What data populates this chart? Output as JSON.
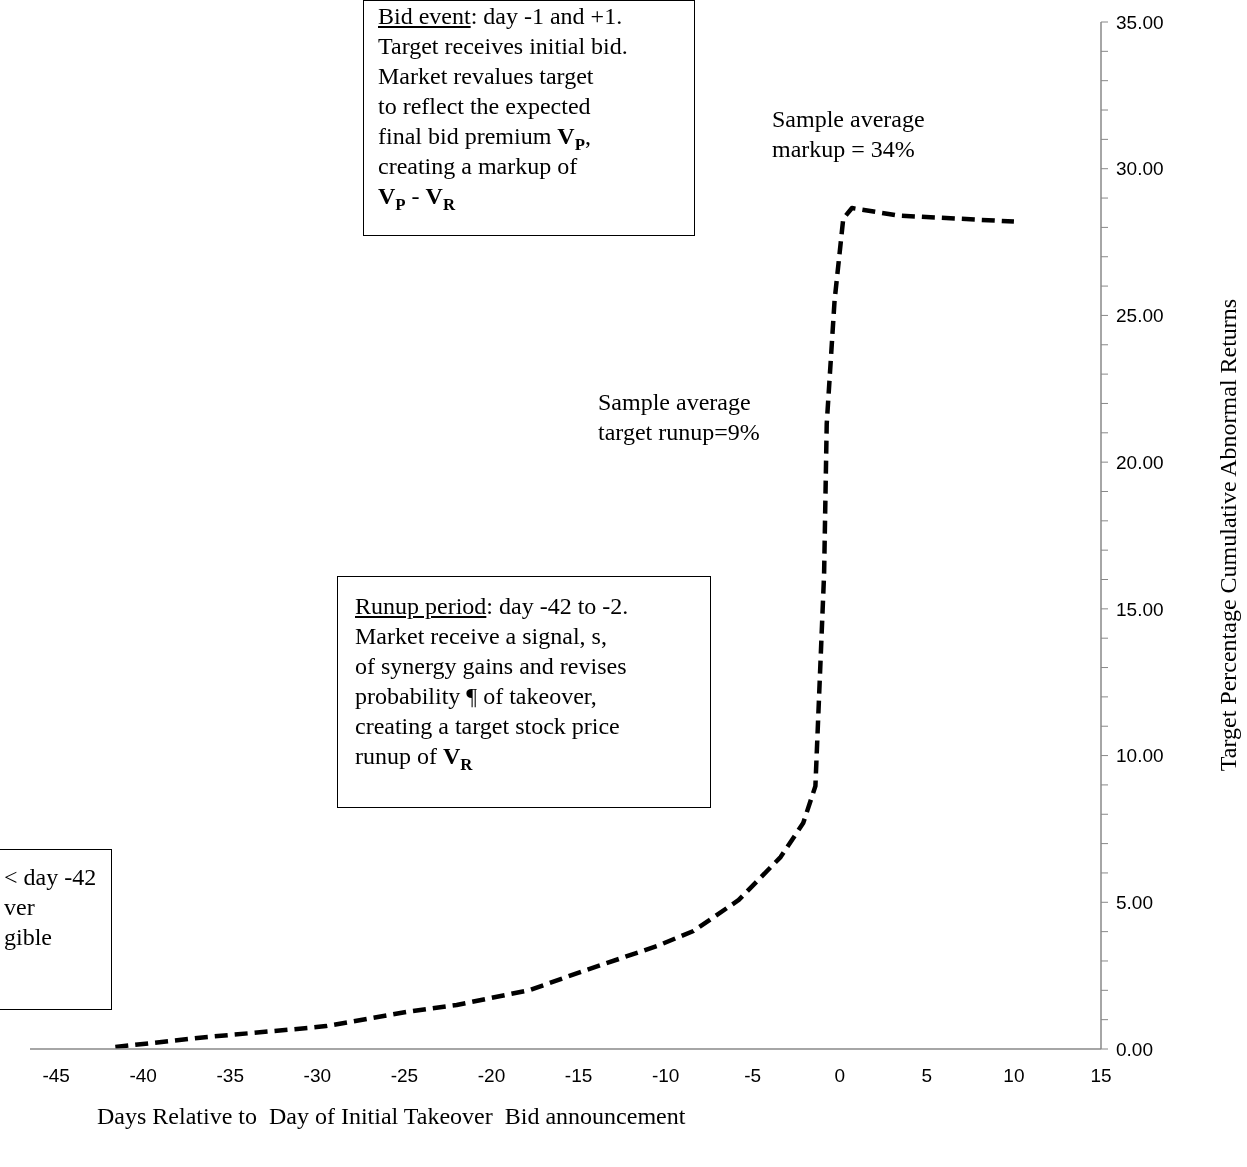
{
  "chart_data": {
    "type": "line",
    "xlabel": "Days Relative to  Day of Initial Takeover  Bid announcement",
    "ylabel": "Target Percentage Cumulative Abnormal Returns",
    "x": [
      -41.6,
      -36.3,
      -30.5,
      -29.5,
      -24.9,
      -22.0,
      -17.8,
      -14.9,
      -10.5,
      -8.4,
      -5.8,
      -3.4,
      -2.1,
      -1.4,
      -0.9,
      -0.75,
      -0.3,
      0.2,
      0.7,
      3.4,
      10
    ],
    "series": [
      {
        "color": "#000000",
        "values": [
          0.07,
          0.41,
          0.72,
          0.78,
          1.26,
          1.5,
          2.01,
          2.62,
          3.51,
          4.02,
          5.08,
          6.54,
          7.7,
          8.96,
          16.2,
          21.3,
          25.5,
          28.3,
          28.66,
          28.4,
          28.2
        ]
      }
    ],
    "xlim": [
      -46.5,
      15
    ],
    "xticks": [
      -45,
      -40,
      -35,
      -30,
      -25,
      -20,
      -15,
      -10,
      -5,
      0,
      5,
      10,
      15
    ],
    "ylim": [
      0,
      35
    ],
    "yticks": [
      {
        "value": 0,
        "label": "0.00"
      },
      {
        "value": 1,
        "label": null
      },
      {
        "value": 2,
        "label": null
      },
      {
        "value": 3,
        "label": null
      },
      {
        "value": 4,
        "label": null
      },
      {
        "value": 5,
        "label": "5.00"
      },
      {
        "value": 6,
        "label": null
      },
      {
        "value": 7,
        "label": null
      },
      {
        "value": 8,
        "label": null
      },
      {
        "value": 9,
        "label": null
      },
      {
        "value": 10,
        "label": "10.00"
      },
      {
        "value": 11,
        "label": null
      },
      {
        "value": 12,
        "label": null
      },
      {
        "value": 13,
        "label": null
      },
      {
        "value": 14,
        "label": null
      },
      {
        "value": 15,
        "label": "15.00"
      },
      {
        "value": 16,
        "label": null
      },
      {
        "value": 17,
        "label": null
      },
      {
        "value": 18,
        "label": null
      },
      {
        "value": 19,
        "label": null
      },
      {
        "value": 20,
        "label": "20.00"
      },
      {
        "value": 21,
        "label": null
      },
      {
        "value": 22,
        "label": null
      },
      {
        "value": 23,
        "label": null
      },
      {
        "value": 24,
        "label": null
      },
      {
        "value": 25,
        "label": "25.00"
      },
      {
        "value": 26,
        "label": null
      },
      {
        "value": 27,
        "label": null
      },
      {
        "value": 28,
        "label": null
      },
      {
        "value": 29,
        "label": null
      },
      {
        "value": 30,
        "label": "30.00"
      },
      {
        "value": 31,
        "label": null
      },
      {
        "value": 32,
        "label": null
      },
      {
        "value": 33,
        "label": null
      },
      {
        "value": 34,
        "label": null
      },
      {
        "value": 35,
        "label": "35.00"
      }
    ],
    "line_style": "dashed",
    "marker": "none",
    "grid": false,
    "legend": false,
    "annotations": [
      "Bid event: day -1 and +1.\nTarget receives initial bid.\nMarket revalues target\nto reflect the expected\nfinal bid premium V$_{P}$,\ncreating a markup of\nV$_{P}$ - V$_{R}$",
      "Sample average\nmarkup = 34%",
      "Sample average\ntarget runup=9%",
      "Runup period: day -42 to -2.\nMarket receive a signal, s,\nof synergy gains and revises\nprobability ¶ of takeover,\ncreating a target stock price\nrunup of V$_{R}$",
      "< day -42\nver\ngible"
    ]
  }
}
